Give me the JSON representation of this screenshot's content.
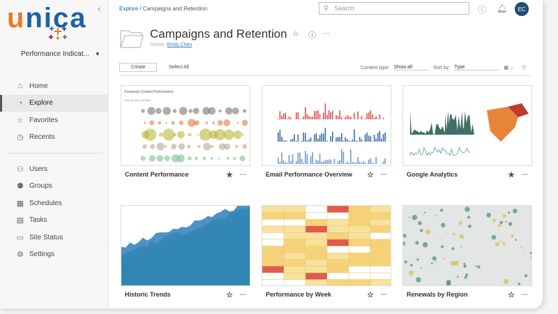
{
  "brand": {
    "logo_text": "unica",
    "logo_colors": {
      "u": "#e87d1e",
      "nica": "#1f5fa8"
    }
  },
  "sidebar": {
    "site": "Performance Indicat...",
    "items": [
      {
        "label": "Home",
        "icon": "home-icon",
        "glyph": "⌂"
      },
      {
        "label": "Explore",
        "icon": "explore-icon",
        "glyph": "◔",
        "active": true
      },
      {
        "label": "Favorites",
        "icon": "star-icon",
        "glyph": "☆"
      },
      {
        "label": "Recents",
        "icon": "clock-icon",
        "glyph": "◷"
      },
      {
        "label": "Users",
        "icon": "users-icon",
        "glyph": "⚇"
      },
      {
        "label": "Groups",
        "icon": "groups-icon",
        "glyph": "⚉"
      },
      {
        "label": "Schedules",
        "icon": "calendar-icon",
        "glyph": "▦"
      },
      {
        "label": "Tasks",
        "icon": "tasks-icon",
        "glyph": "▤"
      },
      {
        "label": "Site Status",
        "icon": "status-icon",
        "glyph": "▭"
      },
      {
        "label": "Settings",
        "icon": "gear-icon",
        "glyph": "⚙"
      }
    ]
  },
  "header": {
    "breadcrumb": {
      "root": "Explore",
      "sep": "/",
      "current": "Campaigns and Retention"
    },
    "search_placeholder": "Search",
    "avatar": "EC",
    "accent": "#1d4f73"
  },
  "project": {
    "title": "Campaigns and Retention",
    "owner_label": "Owner",
    "owner": "Emily Chen"
  },
  "toolbar": {
    "create": "Create",
    "select_all": "Select All",
    "content_type_label": "Content type:",
    "content_type": "Show all",
    "sort_label": "Sort by:",
    "sort": "Type"
  },
  "cards": [
    {
      "name": "Content Performance",
      "favorite": true,
      "thumb_title": "Facebook Content Performance",
      "thumb_subtitle": "Posts by Type and Date"
    },
    {
      "name": "Email Performance Overview",
      "favorite": false
    },
    {
      "name": "Google Analytics",
      "favorite": true
    },
    {
      "name": "Historic Trends",
      "favorite": false
    },
    {
      "name": "Performance by Week",
      "favorite": false
    },
    {
      "name": "Renewals by Region",
      "favorite": false
    }
  ]
}
